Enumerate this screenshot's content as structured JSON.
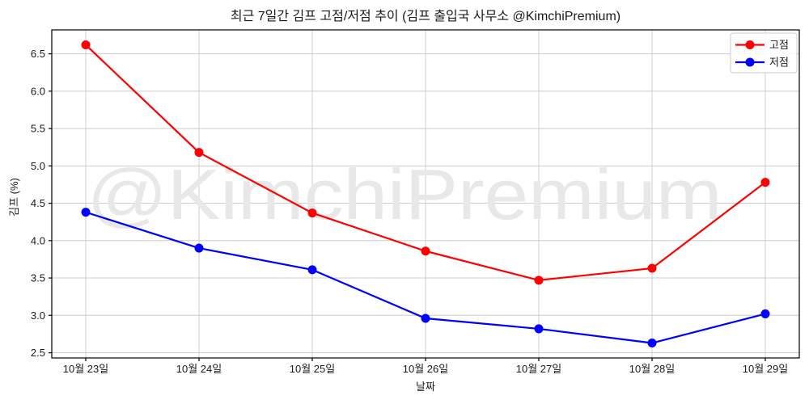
{
  "watermark": "@KimchiPremium",
  "chart_data": {
    "type": "line",
    "title": "최근 7일간 김프 고점/저점 추이 (김프 출입국 사무소 @KimchiPremium)",
    "xlabel": "날짜",
    "ylabel": "김프 (%)",
    "categories": [
      "10월 23일",
      "10월 24일",
      "10월 25일",
      "10월 26일",
      "10월 27일",
      "10월 28일",
      "10월 29일"
    ],
    "series": [
      {
        "name": "고점",
        "color": "#ff0000",
        "marker": "circle",
        "values": [
          6.62,
          5.18,
          4.37,
          3.86,
          3.47,
          3.63,
          4.78
        ]
      },
      {
        "name": "저점",
        "color": "#0000ff",
        "marker": "circle",
        "values": [
          4.38,
          3.9,
          3.61,
          2.96,
          2.82,
          2.63,
          3.02
        ]
      }
    ],
    "ylim": [
      2.43,
      6.82
    ],
    "yticks": [
      2.5,
      3.0,
      3.5,
      4.0,
      4.5,
      5.0,
      5.5,
      6.0,
      6.5
    ],
    "grid": true,
    "legend_position": "upper right",
    "colors": {
      "grid": "#cccccc",
      "spine": "#000000",
      "background": "#ffffff",
      "legend_border": "#cccccc"
    }
  }
}
